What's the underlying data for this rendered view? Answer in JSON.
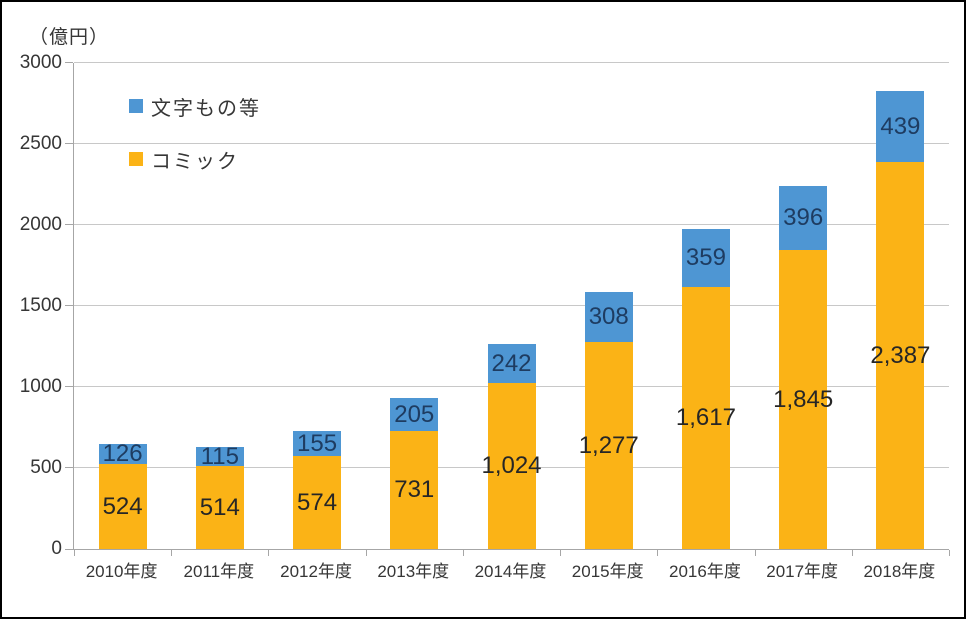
{
  "unit_label": "（億円）",
  "legend": {
    "items": [
      {
        "label": "文字もの等",
        "series_key": "moji"
      },
      {
        "label": "コミック",
        "series_key": "comic"
      }
    ]
  },
  "colors": {
    "comic": "#FBB316",
    "moji": "#4E96D3",
    "grid": "#C8C8C8",
    "axis": "#A6A6A6",
    "label_on_comic": "#262626",
    "label_on_moji": "#1E3C61",
    "tick_text": "#363636"
  },
  "chart_data": {
    "type": "bar",
    "stacked": true,
    "title": "",
    "ylabel": "（億円）",
    "categories": [
      "2010年度",
      "2011年度",
      "2012年度",
      "2013年度",
      "2014年度",
      "2015年度",
      "2016年度",
      "2017年度",
      "2018年度"
    ],
    "series": [
      {
        "name": "コミック",
        "key": "comic",
        "values": [
          524,
          514,
          574,
          731,
          1024,
          1277,
          1617,
          1845,
          2387
        ]
      },
      {
        "name": "文字もの等",
        "key": "moji",
        "values": [
          126,
          115,
          155,
          205,
          242,
          308,
          359,
          396,
          439
        ]
      }
    ],
    "data_labels": [
      "524",
      "514",
      "574",
      "731",
      "1,024",
      "1,277",
      "1,617",
      "1,845",
      "2,387",
      "126",
      "115",
      "155",
      "205",
      "242",
      "308",
      "359",
      "396",
      "439"
    ],
    "ylim": [
      0,
      3000
    ],
    "yticks": [
      0,
      500,
      1000,
      1500,
      2000,
      2500,
      3000
    ],
    "grid": true,
    "legend_position": "inside-top-left"
  }
}
